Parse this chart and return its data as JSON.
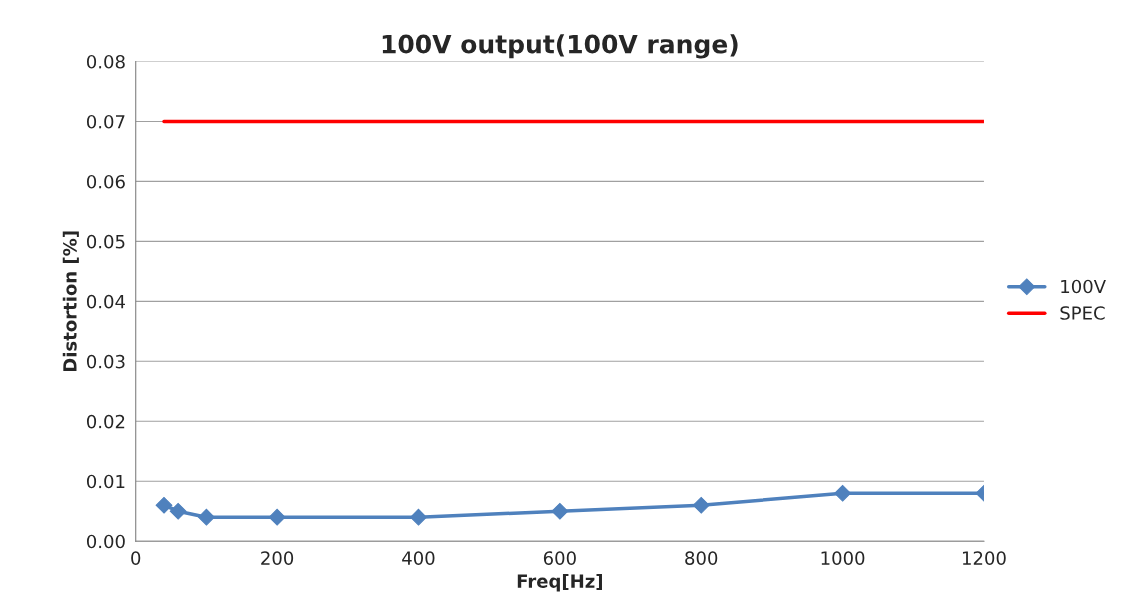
{
  "chart_data": {
    "type": "line",
    "title": "100V output(100V range)",
    "xlabel": "Freq[Hz]",
    "ylabel": "Distortion [%]",
    "series": [
      {
        "name": "100V",
        "color": "#4f81bd",
        "marker": "diamond",
        "x": [
          40,
          60,
          100,
          200,
          400,
          600,
          800,
          1000,
          1200
        ],
        "values": [
          0.006,
          0.005,
          0.004,
          0.004,
          0.004,
          0.005,
          0.006,
          0.008,
          0.008
        ]
      },
      {
        "name": "SPEC",
        "color": "#ff0000",
        "marker": "none",
        "x": [
          40,
          1200
        ],
        "values": [
          0.07,
          0.07
        ]
      }
    ],
    "xlim": [
      0,
      1200
    ],
    "xticks": [
      0,
      200,
      400,
      600,
      800,
      1000,
      1200
    ],
    "ylim": [
      0,
      0.08
    ],
    "yticks": [
      {
        "value": 0,
        "label": "0.00"
      },
      {
        "value": 0.01,
        "label": "0.01"
      },
      {
        "value": 0.02,
        "label": "0.02"
      },
      {
        "value": 0.03,
        "label": "0.03"
      },
      {
        "value": 0.04,
        "label": "0.04"
      },
      {
        "value": 0.05,
        "label": "0.05"
      },
      {
        "value": 0.06,
        "label": "0.06"
      },
      {
        "value": 0.07,
        "label": "0.07"
      },
      {
        "value": 0.08,
        "label": "0.08"
      }
    ],
    "grid": "y",
    "legend": "right"
  }
}
